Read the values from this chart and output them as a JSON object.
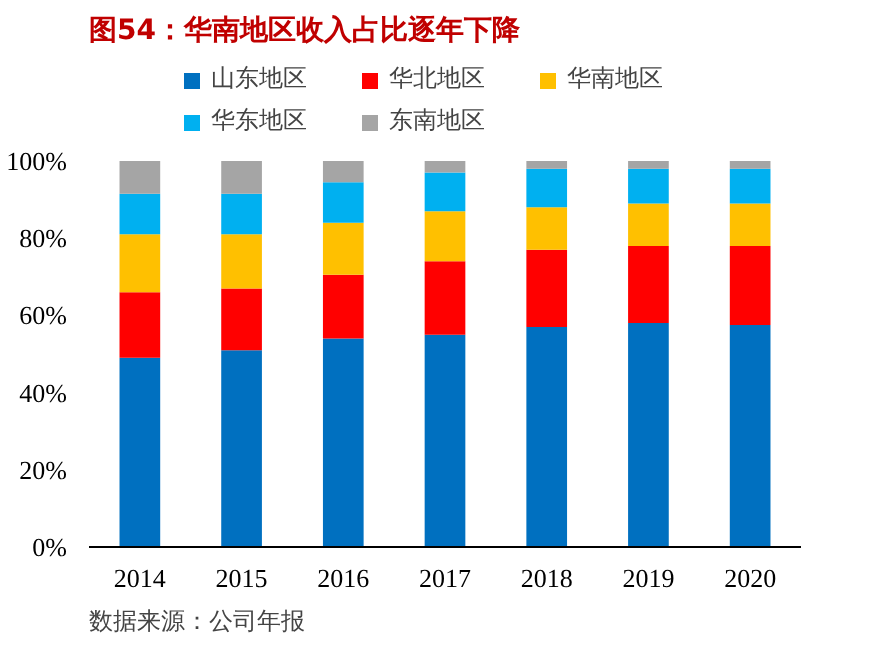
{
  "chart_data": {
    "type": "bar",
    "stacked": true,
    "title": "图54：华南地区收入占比逐年下降",
    "annotations": [
      "数据来源：公司年报"
    ],
    "categories": [
      "2014",
      "2015",
      "2016",
      "2017",
      "2018",
      "2019",
      "2020"
    ],
    "series": [
      {
        "name": "山东地区",
        "color": "#0070c0",
        "values": [
          49,
          51,
          54,
          55,
          57,
          58,
          57.5
        ]
      },
      {
        "name": "华北地区",
        "color": "#ff0000",
        "values": [
          17,
          16,
          16.5,
          19,
          20,
          20,
          20.5
        ]
      },
      {
        "name": "华南地区",
        "color": "#ffc000",
        "values": [
          15,
          14,
          13.5,
          13,
          11,
          11,
          11
        ]
      },
      {
        "name": "华东地区",
        "color": "#00b0f0",
        "values": [
          10.5,
          10.5,
          10.5,
          10,
          10,
          9,
          9
        ]
      },
      {
        "name": "东南地区",
        "color": "#a5a5a5",
        "values": [
          8.5,
          8.5,
          5.5,
          3,
          2,
          2,
          2
        ]
      }
    ],
    "ylim": [
      0,
      100
    ],
    "yticks": [
      {
        "value": 0,
        "label": "0%"
      },
      {
        "value": 20,
        "label": "20%"
      },
      {
        "value": 40,
        "label": "40%"
      },
      {
        "value": 60,
        "label": "60%"
      },
      {
        "value": 80,
        "label": "80%"
      },
      {
        "value": 100,
        "label": "100%"
      }
    ],
    "grid": false,
    "legend": "top"
  }
}
